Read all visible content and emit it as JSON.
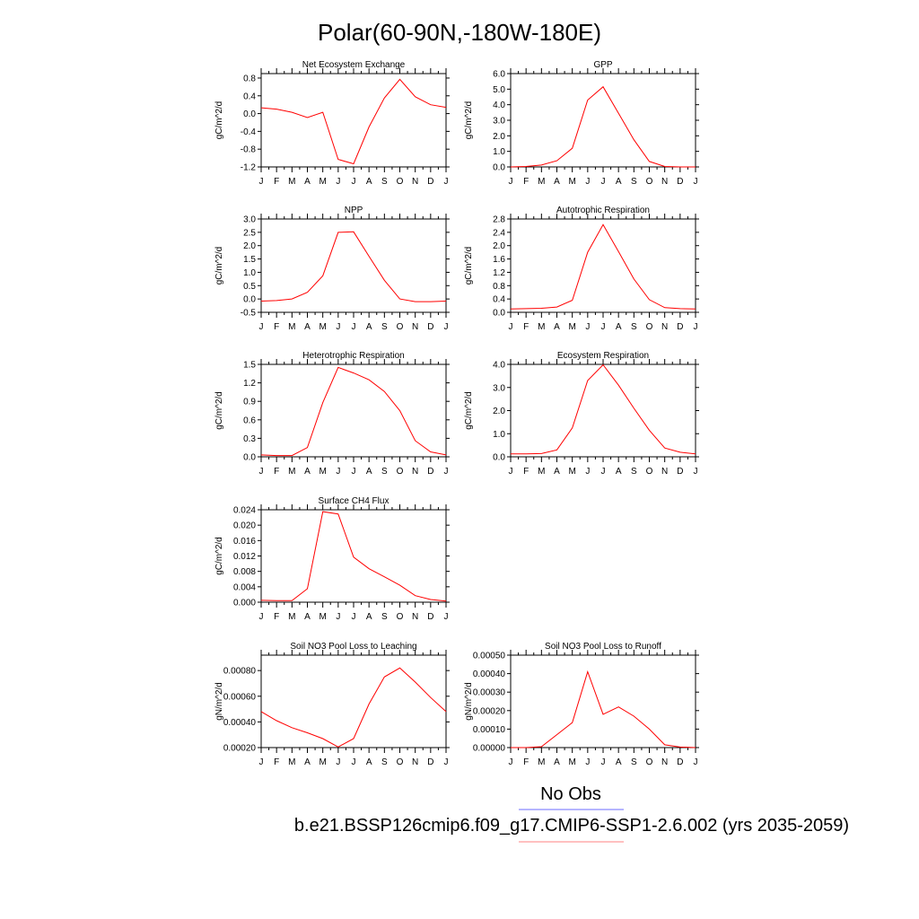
{
  "page": {
    "title": "Polar(60-90N,-180W-180E)",
    "legend": [
      {
        "label": "No Obs",
        "color": "#6b6bff"
      },
      {
        "label": "b.e21.BSSP126cmip6.f09_g17.CMIP6-SSP1-2.6.002 (yrs 2035-2059)",
        "color": "#ff8080"
      }
    ]
  },
  "chart_data": [
    {
      "type": "line",
      "title": "Net Ecosystem Exchange",
      "ylabel": "gC/m^2/d",
      "ylim": [
        -1.2,
        0.9
      ],
      "yticks": [
        -1.2,
        -0.8,
        -0.4,
        0.0,
        0.4,
        0.8
      ],
      "ytick_labels": [
        "-1.2",
        "-0.8",
        "-0.4",
        "0.0",
        "0.4",
        "0.8"
      ],
      "categories": [
        "J",
        "F",
        "M",
        "A",
        "M",
        "J",
        "J",
        "A",
        "S",
        "O",
        "N",
        "D",
        "J"
      ],
      "series": [
        {
          "color": "#ff0000",
          "values": [
            0.13,
            0.1,
            0.03,
            -0.09,
            0.03,
            -1.03,
            -1.13,
            -0.3,
            0.35,
            0.77,
            0.38,
            0.2,
            0.14
          ]
        }
      ]
    },
    {
      "type": "line",
      "title": "GPP",
      "ylabel": "gC/m^2/d",
      "ylim": [
        0.0,
        6.0
      ],
      "yticks": [
        0.0,
        1.0,
        2.0,
        3.0,
        4.0,
        5.0,
        6.0
      ],
      "ytick_labels": [
        "0.0",
        "1.0",
        "2.0",
        "3.0",
        "4.0",
        "5.0",
        "6.0"
      ],
      "categories": [
        "J",
        "F",
        "M",
        "A",
        "M",
        "J",
        "J",
        "A",
        "S",
        "O",
        "N",
        "D",
        "J"
      ],
      "series": [
        {
          "color": "#ff0000",
          "values": [
            0.0,
            0.03,
            0.12,
            0.4,
            1.2,
            4.3,
            5.15,
            3.45,
            1.75,
            0.35,
            0.03,
            0.0,
            0.0
          ]
        }
      ]
    },
    {
      "type": "line",
      "title": "NPP",
      "ylabel": "gC/m^2/d",
      "ylim": [
        -0.5,
        3.0
      ],
      "yticks": [
        -0.5,
        0.0,
        0.5,
        1.0,
        1.5,
        2.0,
        2.5,
        3.0
      ],
      "ytick_labels": [
        "-0.5",
        "0.0",
        "0.5",
        "1.0",
        "1.5",
        "2.0",
        "2.5",
        "3.0"
      ],
      "categories": [
        "J",
        "F",
        "M",
        "A",
        "M",
        "J",
        "J",
        "A",
        "S",
        "O",
        "N",
        "D",
        "J"
      ],
      "series": [
        {
          "color": "#ff0000",
          "values": [
            -0.08,
            -0.06,
            0.0,
            0.25,
            0.87,
            2.5,
            2.52,
            1.6,
            0.7,
            0.0,
            -0.1,
            -0.1,
            -0.08
          ]
        }
      ]
    },
    {
      "type": "line",
      "title": "Autotrophic Respiration",
      "ylabel": "gC/m^2/d",
      "ylim": [
        0.0,
        2.8
      ],
      "yticks": [
        0.0,
        0.4,
        0.8,
        1.2,
        1.6,
        2.0,
        2.4,
        2.8
      ],
      "ytick_labels": [
        "0.0",
        "0.4",
        "0.8",
        "1.2",
        "1.6",
        "2.0",
        "2.4",
        "2.8"
      ],
      "categories": [
        "J",
        "F",
        "M",
        "A",
        "M",
        "J",
        "J",
        "A",
        "S",
        "O",
        "N",
        "D",
        "J"
      ],
      "series": [
        {
          "color": "#ff0000",
          "values": [
            0.1,
            0.11,
            0.12,
            0.16,
            0.36,
            1.8,
            2.63,
            1.82,
            1.0,
            0.38,
            0.14,
            0.11,
            0.1
          ]
        }
      ]
    },
    {
      "type": "line",
      "title": "Heterotrophic Respiration",
      "ylabel": "gC/m^2/d",
      "ylim": [
        0.0,
        1.5
      ],
      "yticks": [
        0.0,
        0.3,
        0.6,
        0.9,
        1.2,
        1.5
      ],
      "ytick_labels": [
        "0.0",
        "0.3",
        "0.6",
        "0.9",
        "1.2",
        "1.5"
      ],
      "categories": [
        "J",
        "F",
        "M",
        "A",
        "M",
        "J",
        "J",
        "A",
        "S",
        "O",
        "N",
        "D",
        "J"
      ],
      "series": [
        {
          "color": "#ff0000",
          "values": [
            0.03,
            0.02,
            0.02,
            0.15,
            0.88,
            1.45,
            1.36,
            1.25,
            1.06,
            0.75,
            0.26,
            0.08,
            0.03
          ]
        }
      ]
    },
    {
      "type": "line",
      "title": "Ecosystem Respiration",
      "ylabel": "gC/m^2/d",
      "ylim": [
        0.0,
        4.0
      ],
      "yticks": [
        0.0,
        1.0,
        2.0,
        3.0,
        4.0
      ],
      "ytick_labels": [
        "0.0",
        "1.0",
        "2.0",
        "3.0",
        "4.0"
      ],
      "categories": [
        "J",
        "F",
        "M",
        "A",
        "M",
        "J",
        "J",
        "A",
        "S",
        "O",
        "N",
        "D",
        "J"
      ],
      "series": [
        {
          "color": "#ff0000",
          "values": [
            0.13,
            0.13,
            0.14,
            0.3,
            1.25,
            3.3,
            3.98,
            3.1,
            2.1,
            1.15,
            0.38,
            0.2,
            0.13
          ]
        }
      ]
    },
    {
      "type": "line",
      "title": "Surface CH4 Flux",
      "ylabel": "gC/m^2/d",
      "ylim": [
        0.0,
        0.024
      ],
      "yticks": [
        0.0,
        0.004,
        0.008,
        0.012,
        0.016,
        0.02,
        0.024
      ],
      "ytick_labels": [
        "0.000",
        "0.004",
        "0.008",
        "0.012",
        "0.016",
        "0.020",
        "0.024"
      ],
      "categories": [
        "J",
        "F",
        "M",
        "A",
        "M",
        "J",
        "J",
        "A",
        "S",
        "O",
        "N",
        "D",
        "J"
      ],
      "series": [
        {
          "color": "#ff0000",
          "values": [
            0.0005,
            0.0004,
            0.0004,
            0.0035,
            0.0235,
            0.0229,
            0.0117,
            0.0087,
            0.0066,
            0.0044,
            0.0017,
            0.0007,
            0.0003
          ]
        }
      ]
    },
    {
      "type": "line",
      "title": "Soil NO3 Pool Loss to Leaching",
      "ylabel": "gN/m^2/d",
      "ylim": [
        0.0002,
        0.00092
      ],
      "yticks": [
        0.0002,
        0.0004,
        0.0006,
        0.0008
      ],
      "ytick_labels": [
        "0.00020",
        "0.00040",
        "0.00060",
        "0.00080"
      ],
      "categories": [
        "J",
        "F",
        "M",
        "A",
        "M",
        "J",
        "J",
        "A",
        "S",
        "O",
        "N",
        "D",
        "J"
      ],
      "series": [
        {
          "color": "#ff0000",
          "values": [
            0.00048,
            0.00041,
            0.000355,
            0.000315,
            0.00027,
            0.000205,
            0.00027,
            0.00054,
            0.00075,
            0.00082,
            0.00071,
            0.00059,
            0.00048
          ]
        }
      ]
    },
    {
      "type": "line",
      "title": "Soil NO3 Pool Loss to Runoff",
      "ylabel": "gN/m^2/d",
      "ylim": [
        0.0,
        0.0005
      ],
      "yticks": [
        0.0,
        0.0001,
        0.0002,
        0.0003,
        0.0004,
        0.0005
      ],
      "ytick_labels": [
        "0.00000",
        "0.00010",
        "0.00020",
        "0.00030",
        "0.00040",
        "0.00050"
      ],
      "categories": [
        "J",
        "F",
        "M",
        "A",
        "M",
        "J",
        "J",
        "A",
        "S",
        "O",
        "N",
        "D",
        "J"
      ],
      "series": [
        {
          "color": "#ff0000",
          "values": [
            0.0,
            0.0,
            5e-06,
            7e-05,
            0.000135,
            0.00041,
            0.00018,
            0.00022,
            0.00017,
            0.0001,
            1.5e-05,
            3e-06,
            0.0
          ]
        }
      ]
    }
  ]
}
